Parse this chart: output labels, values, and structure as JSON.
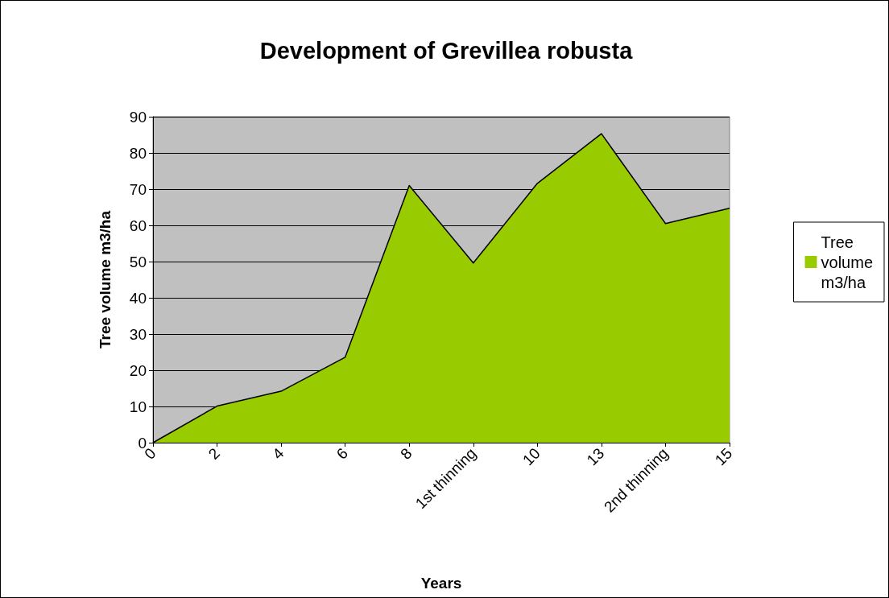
{
  "chart_data": {
    "type": "area",
    "title": "Development of Grevillea robusta",
    "xlabel": "Years",
    "ylabel": "Tree volume m3/ha",
    "categories": [
      "0",
      "2",
      "4",
      "6",
      "8",
      "1st thinning",
      "10",
      "13",
      "2nd thinning",
      "15"
    ],
    "series": [
      {
        "name": "Tree volume m3/ha",
        "color": "#99cc00",
        "values": [
          0,
          10.1,
          14.2,
          23.6,
          71,
          49.6,
          71.6,
          85.3,
          60.5,
          64.7
        ]
      }
    ],
    "ylim": [
      0,
      90
    ],
    "yticks": [
      0,
      10,
      20,
      30,
      40,
      50,
      60,
      70,
      80,
      90
    ],
    "grid": "y",
    "legend": "right",
    "marker": "none"
  }
}
